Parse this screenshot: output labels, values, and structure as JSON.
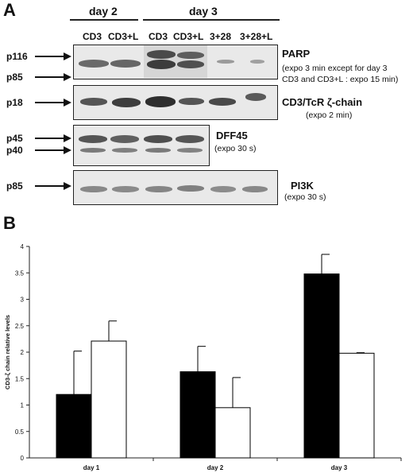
{
  "panel_a": {
    "letter": "A",
    "day_headers": [
      "day 2",
      "day 3"
    ],
    "lanes": [
      "CD3",
      "CD3+L",
      "CD3",
      "CD3+L",
      "3+28",
      "3+28+L"
    ],
    "blots": [
      {
        "protein": "PARP",
        "note_lines": [
          "(expo 3 min except for day 3",
          "CD3 and CD3+L : expo 15 min)"
        ],
        "markers": [
          "p116",
          "p85"
        ]
      },
      {
        "protein": "CD3/TcR ζ-chain",
        "note_lines": [
          "(expo 2 min)"
        ],
        "markers": [
          "p18"
        ]
      },
      {
        "protein": "DFF45",
        "note_lines": [
          "(expo 30 s)"
        ],
        "markers": [
          "p45",
          "p40"
        ]
      },
      {
        "protein": "PI3K",
        "note_lines": [
          "(expo 30 s)"
        ],
        "markers": [
          "p85"
        ]
      }
    ]
  },
  "panel_b": {
    "letter": "B",
    "chart_data": {
      "type": "bar",
      "categories": [
        "day 1",
        "day 2",
        "day 3"
      ],
      "series": [
        {
          "values": [
            1.2,
            1.63,
            3.48
          ],
          "errors": [
            0.82,
            0.48,
            0.37
          ],
          "color": "#000000"
        },
        {
          "values": [
            2.21,
            0.95,
            1.98
          ],
          "errors": [
            0.38,
            0.57,
            0.01
          ],
          "color": "#ffffff"
        }
      ],
      "ylabel": "CD3-ζ chain relative levels",
      "xlabel": "",
      "ylim": [
        0,
        4
      ],
      "yticks": [
        "0",
        "0.5",
        "1",
        "1.5",
        "2",
        "2.5",
        "3",
        "3.5",
        "4"
      ]
    }
  }
}
